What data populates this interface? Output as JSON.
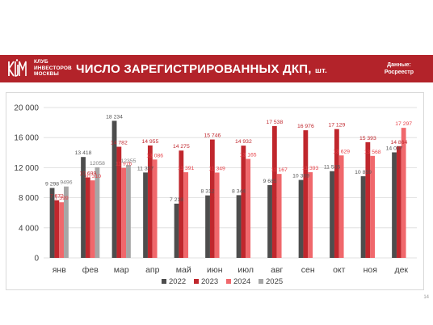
{
  "header": {
    "club_lines": [
      "КЛУБ",
      "ИНВЕСТОРОВ",
      "МОСКВЫ"
    ],
    "title": "ЧИСЛО ЗАРЕГИСТРИРОВАННЫХ ДКП,",
    "title_unit": "шт.",
    "source_lines": [
      "Данные:",
      "Росреестр"
    ],
    "logo_icon": "kim-logo-icon"
  },
  "page_number": "14",
  "colors": {
    "banner": "#b3232a",
    "s2022": "#4d4d4d",
    "s2023": "#c0272d",
    "s2024": "#f0686c",
    "s2025": "#a6a6a6"
  },
  "chart_data": {
    "type": "bar",
    "categories": [
      "янв",
      "фев",
      "мар",
      "апр",
      "май",
      "июн",
      "июл",
      "авг",
      "сен",
      "окт",
      "ноя",
      "дек"
    ],
    "series": [
      {
        "name": "2022",
        "color": "#4d4d4d",
        "label_color": "#555555",
        "values": [
          9298,
          13418,
          18234,
          11357,
          7218,
          8312,
          8344,
          9685,
          10369,
          11535,
          10859,
          14037
        ],
        "labels": [
          "9 298",
          "13 418",
          "18 234",
          "11 357",
          "7 218",
          "8 312",
          "8 344",
          "9 685",
          "10 369",
          "11 535",
          "10 859",
          "14 037"
        ]
      },
      {
        "name": "2023",
        "color": "#c0272d",
        "label_color": "#c0272d",
        "values": [
          7672,
          10699,
          14782,
          14955,
          14275,
          15746,
          14932,
          17538,
          16976,
          17129,
          15393,
          14864
        ],
        "labels": [
          "7 672",
          "10 699",
          "14 782",
          "14 955",
          "14 275",
          "15 746",
          "14 932",
          "17 538",
          "16 976",
          "17 129",
          "15 393",
          "14 864"
        ]
      },
      {
        "name": "2024",
        "color": "#f0686c",
        "label_color": "#e8434a",
        "values": [
          7399,
          10310,
          11976,
          13086,
          11391,
          11349,
          13165,
          11167,
          11393,
          13629,
          13568,
          17297
        ],
        "labels": [
          "7 399",
          "10 310",
          "11 976",
          "13 086",
          "11 391",
          "11 349",
          "13 165",
          "11 167",
          "11 393",
          "13 629",
          "13 568",
          "17 297"
        ]
      },
      {
        "name": "2025",
        "color": "#a6a6a6",
        "label_color": "#7f7f7f",
        "values": [
          9496,
          12058,
          12355,
          null,
          null,
          null,
          null,
          null,
          null,
          null,
          null,
          null
        ],
        "labels": [
          "9496",
          "12058",
          "12355",
          "",
          "",
          "",
          "",
          "",
          "",
          "",
          "",
          ""
        ]
      }
    ],
    "y_ticks": [
      "0",
      "4 000",
      "8 000",
      "12 000",
      "16 000",
      "20 000"
    ],
    "y_tick_values": [
      0,
      4000,
      8000,
      12000,
      16000,
      20000
    ],
    "ylim": [
      0,
      20000
    ],
    "grid": true,
    "legend_position": "bottom",
    "title": "",
    "xlabel": "",
    "ylabel": ""
  }
}
